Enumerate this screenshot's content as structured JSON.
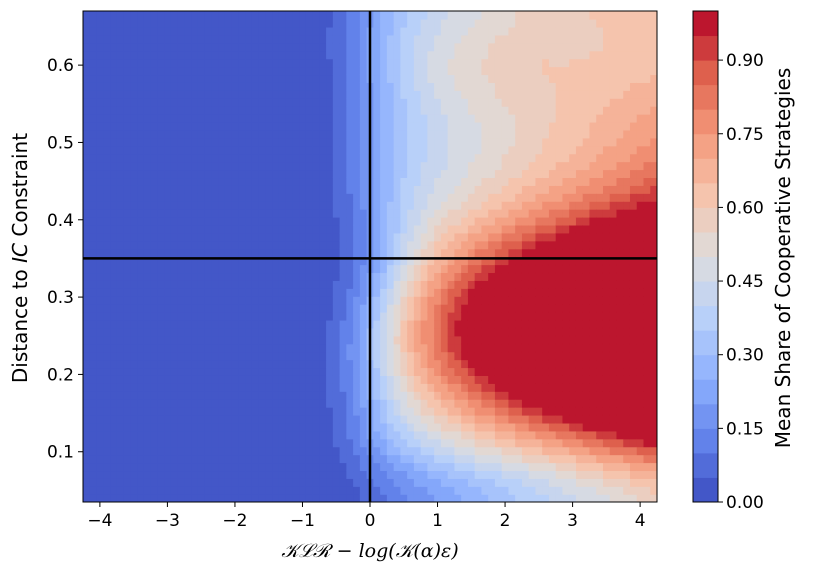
{
  "chart_data": {
    "type": "heatmap",
    "title": "",
    "xlabel": "𝒦ℒℛ − log(𝒦(α)ε)",
    "ylabel_parts": [
      "Distance to ",
      "IC",
      " Constraint"
    ],
    "colorbar_label": "Mean Share of Cooperative Strategies",
    "xlim": [
      -4.25,
      4.25
    ],
    "ylim": [
      0.035,
      0.67
    ],
    "x_ticks": [
      -4,
      -3,
      -2,
      -1,
      0,
      1,
      2,
      3,
      4
    ],
    "x_tick_labels": [
      "−4",
      "−3",
      "−2",
      "−1",
      "0",
      "1",
      "2",
      "3",
      "4"
    ],
    "y_ticks": [
      0.1,
      0.2,
      0.3,
      0.4,
      0.5,
      0.6
    ],
    "y_tick_labels": [
      "0.1",
      "0.2",
      "0.3",
      "0.4",
      "0.5",
      "0.6"
    ],
    "colorbar_range": [
      0,
      1
    ],
    "colorbar_ticks": [
      0.0,
      0.15,
      0.3,
      0.45,
      0.6,
      0.75,
      0.9
    ],
    "colorbar_tick_labels": [
      "0.00",
      "0.15",
      "0.30",
      "0.45",
      "0.60",
      "0.75",
      "0.90"
    ],
    "levels": 20,
    "colormap": "coolwarm",
    "reference_lines": {
      "vertical_x": 0,
      "horizontal_y": 0.35
    },
    "line_color": "#000000",
    "grid": false
  }
}
